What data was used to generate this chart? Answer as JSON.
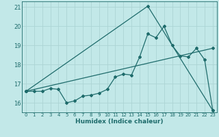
{
  "xlabel": "Humidex (Indice chaleur)",
  "bg_color": "#c2e8e8",
  "grid_color": "#acd4d4",
  "line_color": "#1e6b6b",
  "xlim": [
    -0.5,
    23.5
  ],
  "ylim": [
    15.5,
    21.3
  ],
  "yticks": [
    16,
    17,
    18,
    19,
    20,
    21
  ],
  "xticks": [
    0,
    1,
    2,
    3,
    4,
    5,
    6,
    7,
    8,
    9,
    10,
    11,
    12,
    13,
    14,
    15,
    16,
    17,
    18,
    19,
    20,
    21,
    22,
    23
  ],
  "line1_x": [
    0,
    1,
    2,
    3,
    4,
    5,
    6,
    7,
    8,
    9,
    10,
    11,
    12,
    13,
    14,
    15,
    16,
    17,
    18,
    19,
    20,
    21,
    22,
    23
  ],
  "line1_y": [
    16.6,
    16.6,
    16.6,
    16.75,
    16.7,
    16.0,
    16.1,
    16.35,
    16.4,
    16.5,
    16.7,
    17.35,
    17.5,
    17.45,
    18.4,
    19.6,
    19.4,
    20.0,
    19.0,
    18.45,
    18.4,
    18.85,
    18.25,
    15.6
  ],
  "line2_x": [
    0,
    23
  ],
  "line2_y": [
    16.6,
    18.85
  ],
  "line3_x": [
    0,
    15,
    23
  ],
  "line3_y": [
    16.6,
    21.05,
    15.6
  ]
}
